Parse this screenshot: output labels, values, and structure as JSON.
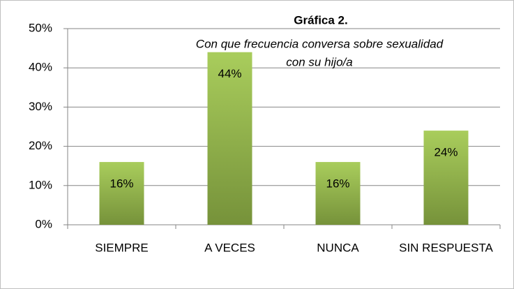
{
  "chart_data": {
    "type": "bar",
    "title": "Gráfica 2.",
    "subtitle": [
      "Con que frecuencia conversa sobre sexualidad",
      "con su hijo/a"
    ],
    "categories": [
      "SIEMPRE",
      "A VECES",
      "NUNCA",
      "SIN RESPUESTA"
    ],
    "values": [
      16,
      44,
      16,
      24
    ],
    "value_labels": [
      "16%",
      "44%",
      "16%",
      "24%"
    ],
    "color": "#8fb24a",
    "ylim": [
      0,
      50
    ],
    "yticks": [
      {
        "value": 0,
        "label": "0%"
      },
      {
        "value": 10,
        "label": "10%"
      },
      {
        "value": 20,
        "label": "20%"
      },
      {
        "value": 30,
        "label": "30%"
      },
      {
        "value": 40,
        "label": "40%"
      },
      {
        "value": 50,
        "label": "50%"
      }
    ],
    "grid": true
  }
}
